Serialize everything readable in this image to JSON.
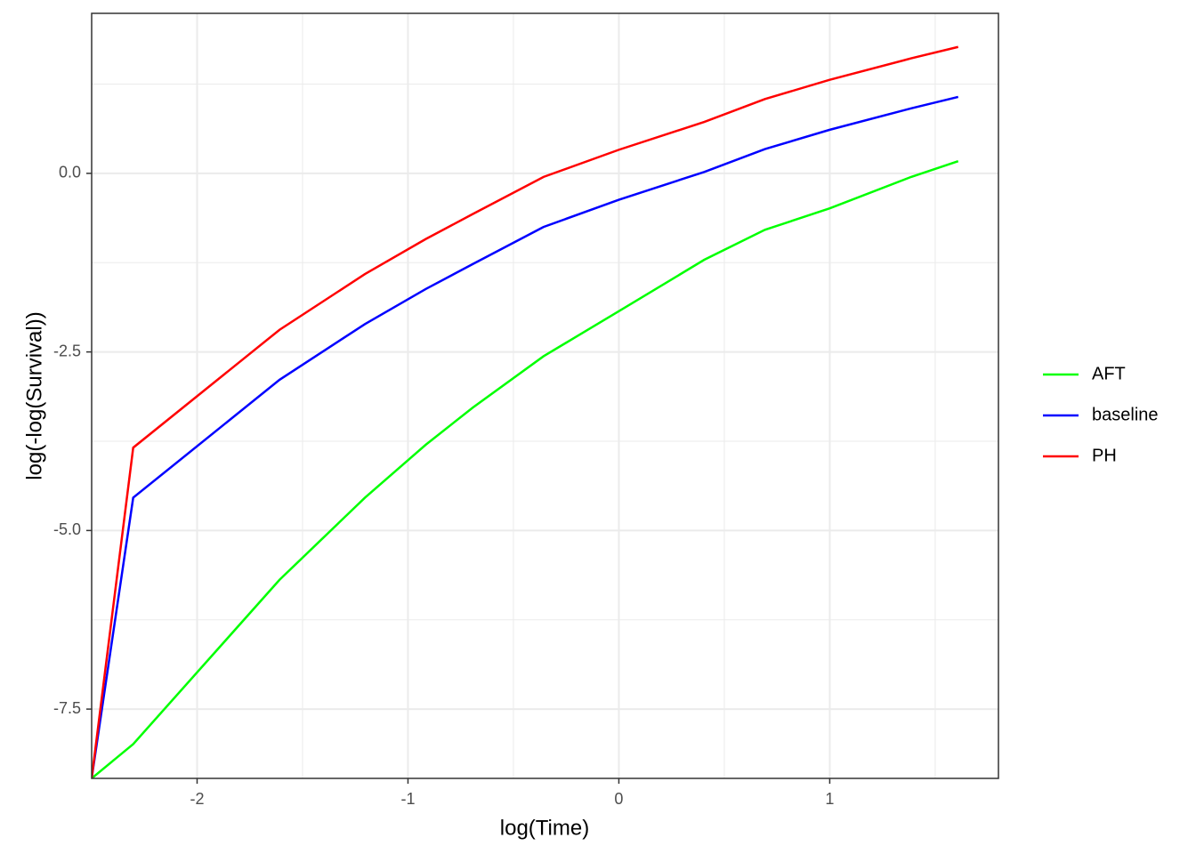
{
  "chart_data": {
    "type": "line",
    "x_label": "log(Time)",
    "y_label": "log(-log(Survival))",
    "x": [
      -2.5,
      -2.303,
      -1.609,
      -1.204,
      -0.916,
      -0.693,
      -0.357,
      0,
      0.405,
      0.693,
      1,
      1.386,
      1.609
    ],
    "series": [
      {
        "name": "AFT",
        "color": "#00ff00",
        "values": [
          -8.47,
          -7.99,
          -5.69,
          -4.54,
          -3.8,
          -3.28,
          -2.56,
          -1.93,
          -1.21,
          -0.79,
          -0.49,
          -0.05,
          0.17
        ]
      },
      {
        "name": "baseline",
        "color": "#0000ff",
        "values": [
          -8.47,
          -4.54,
          -2.89,
          -2.11,
          -1.62,
          -1.27,
          -0.75,
          -0.37,
          0.02,
          0.34,
          0.61,
          0.91,
          1.07
        ]
      },
      {
        "name": "PH",
        "color": "#ff0000",
        "values": [
          -8.47,
          -3.84,
          -2.19,
          -1.41,
          -0.92,
          -0.57,
          -0.05,
          0.33,
          0.72,
          1.04,
          1.31,
          1.61,
          1.77
        ]
      }
    ],
    "xlim": [
      -2.5,
      1.8
    ],
    "ylim": [
      -8.47,
      2.24
    ],
    "xticks": [
      -2,
      -1,
      0,
      1
    ],
    "yticks": [
      {
        "value": 0,
        "label": "0.0"
      },
      -2.5,
      {
        "value": -5,
        "label": "-5.0"
      },
      -7.5
    ],
    "x_minor_ticks": [
      -1.5,
      -0.5,
      0.5,
      1.5
    ],
    "y_minor_ticks": [
      1.25,
      -1.25,
      -3.75,
      -6.25
    ],
    "grid": true,
    "legend": "right"
  }
}
